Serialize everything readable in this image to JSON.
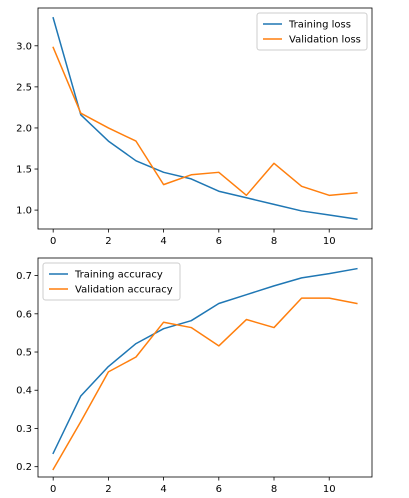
{
  "chart_data": [
    {
      "type": "line",
      "title": "",
      "xlabel": "",
      "ylabel": "",
      "x": [
        0,
        1,
        2,
        3,
        4,
        5,
        6,
        7,
        8,
        9,
        10,
        11
      ],
      "xlim": [
        -0.55,
        11.55
      ],
      "ylim": [
        0.77,
        3.46
      ],
      "xticks": [
        0,
        2,
        4,
        6,
        8,
        10
      ],
      "yticks": [
        1.0,
        1.5,
        2.0,
        2.5,
        3.0
      ],
      "xtick_labels": [
        "0",
        "2",
        "4",
        "6",
        "8",
        "10"
      ],
      "ytick_labels": [
        "1.0",
        "1.5",
        "2.0",
        "2.5",
        "3.0"
      ],
      "grid": false,
      "legend_position": "top-right",
      "series": [
        {
          "name": "Training loss",
          "color": "#1f77b4",
          "values": [
            3.34,
            2.16,
            1.84,
            1.6,
            1.46,
            1.38,
            1.23,
            1.15,
            1.07,
            0.99,
            0.94,
            0.89
          ]
        },
        {
          "name": "Validation loss",
          "color": "#ff7f0e",
          "values": [
            2.98,
            2.18,
            2.0,
            1.84,
            1.31,
            1.43,
            1.46,
            1.18,
            1.57,
            1.29,
            1.18,
            1.21
          ]
        }
      ]
    },
    {
      "type": "line",
      "title": "",
      "xlabel": "",
      "ylabel": "",
      "x": [
        0,
        1,
        2,
        3,
        4,
        5,
        6,
        7,
        8,
        9,
        10,
        11
      ],
      "xlim": [
        -0.55,
        11.55
      ],
      "ylim": [
        0.173,
        0.746
      ],
      "xticks": [
        0,
        2,
        4,
        6,
        8,
        10
      ],
      "yticks": [
        0.2,
        0.3,
        0.4,
        0.5,
        0.6,
        0.7
      ],
      "xtick_labels": [
        "0",
        "2",
        "4",
        "6",
        "8",
        "10"
      ],
      "ytick_labels": [
        "0.2",
        "0.3",
        "0.4",
        "0.5",
        "0.6",
        "0.7"
      ],
      "grid": false,
      "legend_position": "top-left",
      "series": [
        {
          "name": "Training accuracy",
          "color": "#1f77b4",
          "values": [
            0.235,
            0.385,
            0.462,
            0.522,
            0.561,
            0.582,
            0.627,
            0.65,
            0.673,
            0.694,
            0.705,
            0.718
          ]
        },
        {
          "name": "Validation accuracy",
          "color": "#ff7f0e",
          "values": [
            0.193,
            0.318,
            0.448,
            0.487,
            0.578,
            0.564,
            0.516,
            0.585,
            0.564,
            0.641,
            0.641,
            0.627
          ]
        }
      ]
    }
  ]
}
